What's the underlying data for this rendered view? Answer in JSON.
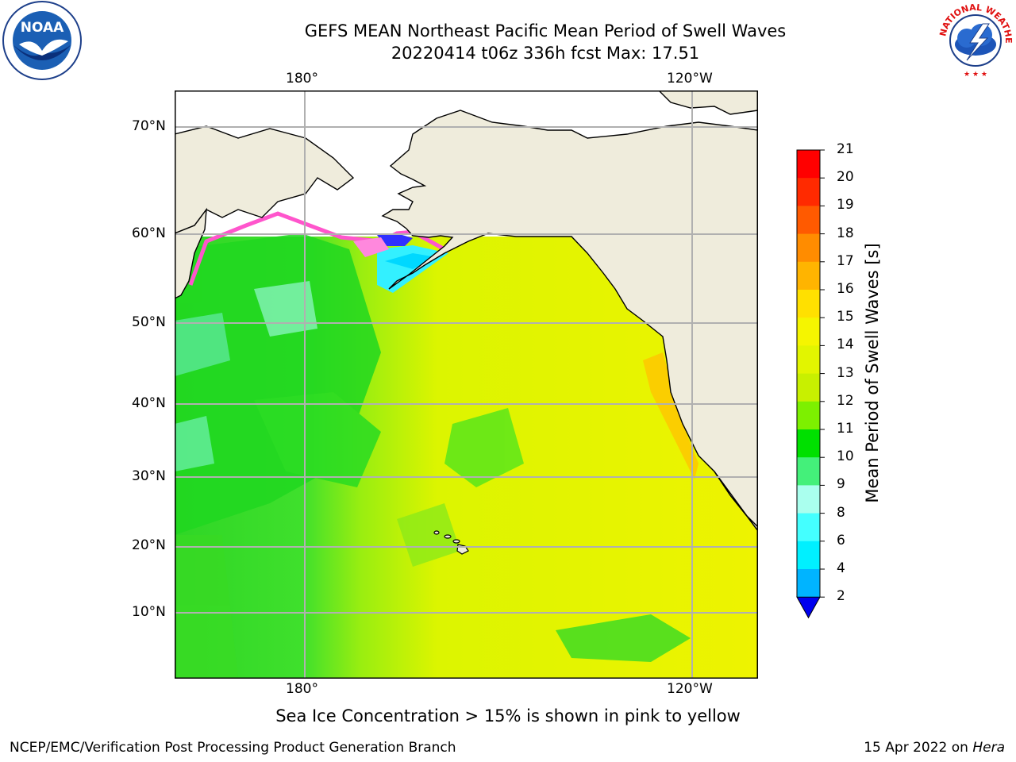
{
  "header": {
    "title_line1": "GEFS MEAN Northeast Pacific Mean Period of Swell Waves",
    "title_line2": "20220414 t06z 336h fcst   Max: 17.51"
  },
  "logos": {
    "left": {
      "label": "NOAA",
      "icon": "noaa-logo-icon"
    },
    "right": {
      "label": "NATIONAL WEATHER SERVICE",
      "icon": "nws-logo-icon"
    }
  },
  "map": {
    "top_ticks": [
      {
        "label": "180°"
      },
      {
        "label": "120°W"
      }
    ],
    "bottom_ticks": [
      {
        "label": "180°"
      },
      {
        "label": "120°W"
      }
    ],
    "lat_ticks": [
      {
        "label": "70°N"
      },
      {
        "label": "60°N"
      },
      {
        "label": "50°N"
      },
      {
        "label": "40°N"
      },
      {
        "label": "30°N"
      },
      {
        "label": "20°N"
      },
      {
        "label": "10°N"
      }
    ],
    "colors": {
      "land": "#efecdc",
      "ocean_main": "#e8f200",
      "ocean_west": "#3ddc2e",
      "ice": "#ff66cc"
    }
  },
  "colorbar": {
    "title": "Mean Period of Swell Waves [s]",
    "labels": [
      "21",
      "20",
      "19",
      "18",
      "17",
      "16",
      "15",
      "14",
      "13",
      "12",
      "11",
      "10",
      "9",
      "8",
      "6",
      "4",
      "2"
    ],
    "colors": [
      "#ff0000",
      "#ff2a00",
      "#ff5a00",
      "#ff8c00",
      "#ffb400",
      "#ffe000",
      "#f5f500",
      "#e2f500",
      "#c8f000",
      "#7df000",
      "#00e000",
      "#44f07a",
      "#aaffee",
      "#44ffff",
      "#00f0ff",
      "#00b4ff",
      "#0064ff"
    ],
    "under_color": "#0000ee"
  },
  "footer": {
    "note": "Sea Ice Concentration > 15% is shown in pink to yellow",
    "credit": "NCEP/EMC/Verification Post Processing Product Generation Branch",
    "date": "15 Apr 2022 on ",
    "date_host": "Hera"
  }
}
